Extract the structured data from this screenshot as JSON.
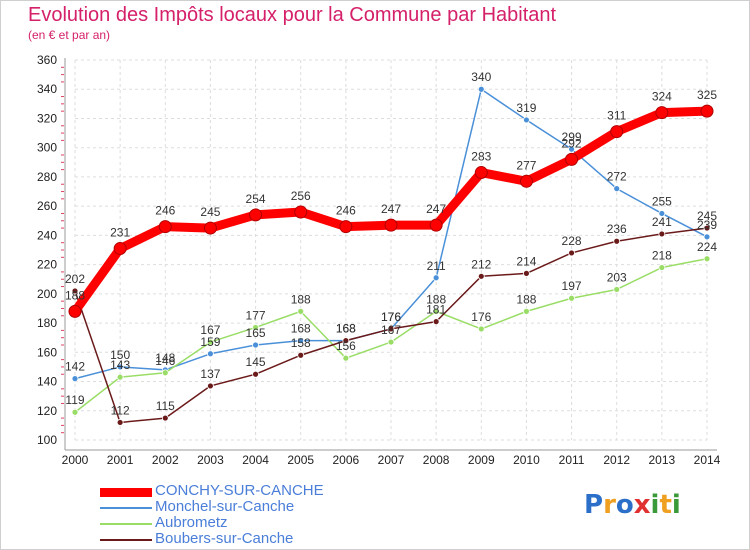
{
  "header": {
    "title": "Evolution des Impôts locaux pour la Commune par Habitant",
    "subtitle": "(en € et par an)"
  },
  "chart_data": {
    "type": "line",
    "title": "Evolution des Impôts locaux pour la Commune par Habitant",
    "subtitle": "(en € et par an)",
    "xlabel": "",
    "ylabel": "",
    "x": [
      "2000",
      "2001",
      "2002",
      "2003",
      "2004",
      "2005",
      "2006",
      "2007",
      "2008",
      "2009",
      "2010",
      "2011",
      "2012",
      "2013",
      "2014"
    ],
    "ylim": [
      100,
      360
    ],
    "yticks": [
      "100",
      "120",
      "140",
      "160",
      "180",
      "200",
      "220",
      "240",
      "260",
      "280",
      "300",
      "320",
      "340",
      "360"
    ],
    "grid": true,
    "legend_position": "bottom-left",
    "series": [
      {
        "name": "CONCHY-SUR-CANCHE",
        "color": "#ff0000",
        "values": [
          188,
          231,
          246,
          245,
          254,
          256,
          246,
          247,
          247,
          283,
          277,
          292,
          311,
          324,
          325
        ]
      },
      {
        "name": "Monchel-sur-Canche",
        "color": "#4a90d9",
        "values": [
          142,
          150,
          148,
          159,
          165,
          168,
          168,
          176,
          211,
          340,
          319,
          299,
          272,
          255,
          239
        ]
      },
      {
        "name": "Aubrometz",
        "color": "#99dd66",
        "values": [
          119,
          143,
          146,
          167,
          177,
          188,
          156,
          167,
          188,
          176,
          188,
          197,
          203,
          218,
          224
        ]
      },
      {
        "name": "Boubers-sur-Canche",
        "color": "#6b1a1a",
        "values": [
          202,
          112,
          115,
          137,
          145,
          158,
          168,
          176,
          181,
          212,
          214,
          228,
          236,
          241,
          245
        ]
      }
    ]
  },
  "logo": {
    "letters": [
      {
        "ch": "P",
        "color": "#2b6fc9"
      },
      {
        "ch": "r",
        "color": "#f0a020"
      },
      {
        "ch": "o",
        "color": "#2b6fc9"
      },
      {
        "ch": "x",
        "color": "#e03030"
      },
      {
        "ch": "i",
        "color": "#3a9a3a"
      },
      {
        "ch": "t",
        "color": "#f0a020"
      },
      {
        "ch": "i",
        "color": "#3a9a3a"
      }
    ]
  }
}
